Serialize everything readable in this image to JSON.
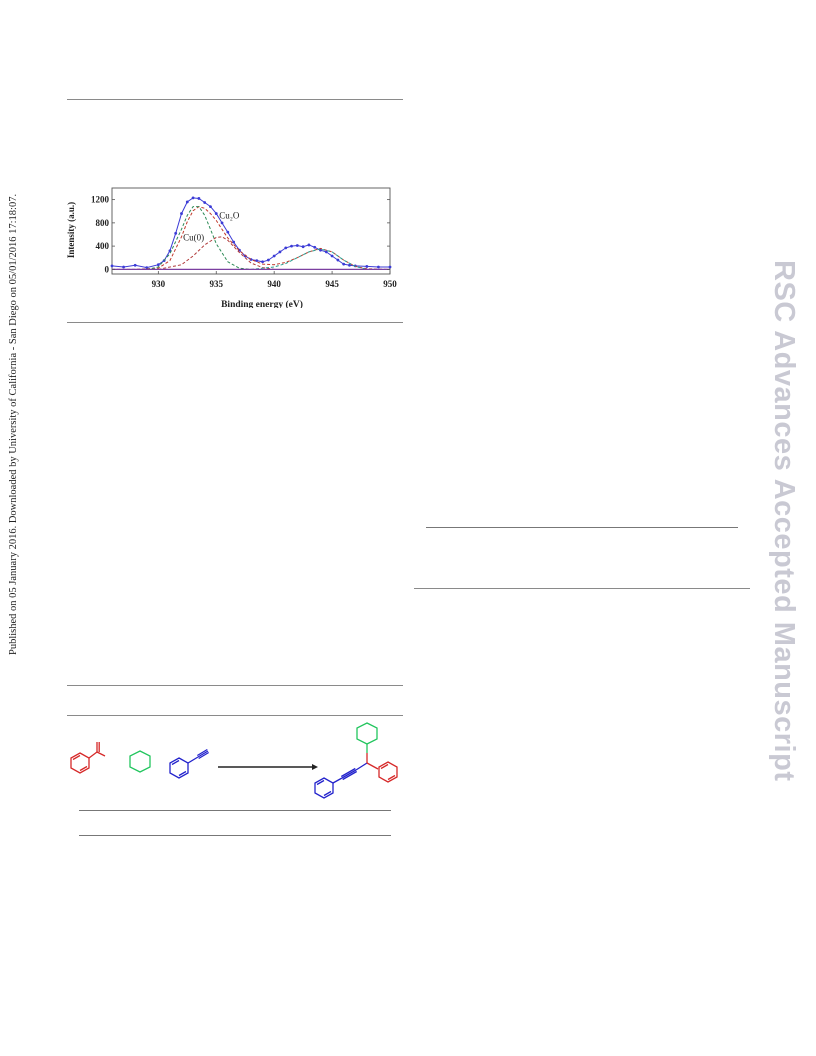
{
  "side_note": "Published on 05 January 2016. Downloaded by University of California - San Diego on 05/01/2016 17:18:07.",
  "watermark": "RSC Advances Accepted Manuscript",
  "colors": {
    "raw": "#3b3bd6",
    "envelope": "#c0392b",
    "cu0_peak": "#2e8b57",
    "cu2o_peak": "#b03a3a",
    "satellite": "#2a9d8f",
    "baseline": "#7b3fa0",
    "ketone": "#d62828",
    "amine": "#22c55e",
    "alkyne": "#2222cc"
  },
  "chart_data": {
    "type": "line",
    "xlabel": "Binding energy (eV)",
    "ylabel": "Intensity (a.u.)",
    "xlim": [
      926,
      950
    ],
    "ylim": [
      -80,
      1400
    ],
    "x_ticks": [
      930,
      935,
      940,
      945,
      950
    ],
    "y_ticks": [
      0,
      400,
      800,
      1200
    ],
    "annotations": [
      {
        "text": "Cu(0)",
        "x": 933.0,
        "y": 500
      },
      {
        "text": "Cu₂O",
        "x": 935.6,
        "y": 600
      }
    ],
    "series": [
      {
        "role": "raw",
        "x": [
          926,
          927,
          928,
          929,
          930,
          930.5,
          931,
          931.5,
          932,
          932.5,
          933,
          933.5,
          934,
          934.5,
          935,
          935.5,
          936,
          936.5,
          937,
          937.5,
          938,
          938.5,
          939,
          939.5,
          940,
          940.5,
          941,
          941.5,
          942,
          942.5,
          943,
          943.5,
          944,
          944.5,
          945,
          945.5,
          946,
          946.5,
          947,
          948,
          949,
          950
        ],
        "y": [
          60,
          40,
          70,
          30,
          80,
          150,
          320,
          620,
          960,
          1160,
          1230,
          1220,
          1150,
          1080,
          960,
          800,
          640,
          470,
          330,
          230,
          170,
          150,
          130,
          160,
          230,
          300,
          370,
          400,
          410,
          390,
          420,
          380,
          330,
          300,
          230,
          160,
          90,
          70,
          60,
          50,
          40,
          40
        ]
      },
      {
        "role": "envelope",
        "x": [
          926,
          928,
          930,
          931,
          932,
          932.5,
          933,
          933.5,
          934,
          934.5,
          935,
          935.5,
          936,
          937,
          938,
          939,
          940,
          941,
          942,
          943,
          944,
          945,
          946,
          947,
          948,
          950
        ],
        "y": [
          0,
          0,
          20,
          150,
          560,
          820,
          1010,
          1080,
          1050,
          960,
          840,
          690,
          540,
          320,
          170,
          90,
          80,
          120,
          200,
          300,
          360,
          300,
          160,
          50,
          10,
          0
        ]
      },
      {
        "role": "cu0",
        "x": [
          929,
          930,
          931,
          932,
          932.5,
          933,
          933.5,
          934,
          934.5,
          935,
          936,
          937,
          938
        ],
        "y": [
          0,
          40,
          270,
          690,
          930,
          1080,
          1080,
          930,
          690,
          440,
          130,
          20,
          0
        ]
      },
      {
        "role": "cu2o",
        "x": [
          930,
          932,
          933,
          934,
          935,
          935.5,
          936,
          937,
          938,
          939,
          940
        ],
        "y": [
          0,
          80,
          230,
          420,
          550,
          560,
          500,
          290,
          110,
          30,
          0
        ]
      },
      {
        "role": "satellite",
        "x": [
          938,
          940,
          941,
          942,
          943,
          944,
          945,
          946,
          947,
          948
        ],
        "y": [
          0,
          40,
          100,
          200,
          300,
          350,
          300,
          160,
          50,
          0
        ]
      },
      {
        "role": "baseline",
        "x": [
          926,
          950
        ],
        "y": [
          0,
          0
        ]
      }
    ]
  }
}
